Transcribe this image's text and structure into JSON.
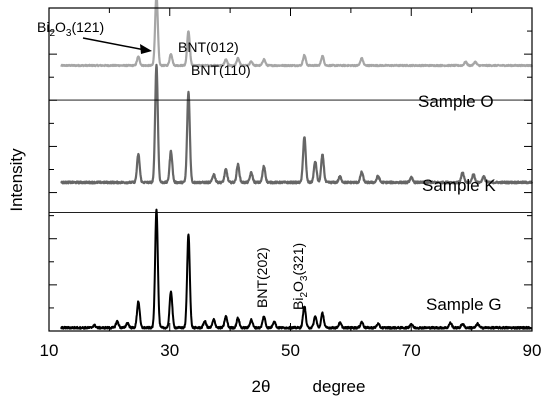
{
  "chart_data": {
    "type": "line",
    "xlabel_main": "2θ",
    "xlabel_unit": "degree",
    "ylabel": "Intensity",
    "xlim": [
      10,
      90
    ],
    "x_ticks": [
      10,
      30,
      50,
      70,
      90
    ],
    "x_tick_labels": [
      "10",
      "30",
      "50",
      "70",
      "90"
    ],
    "x_minor_step": 10,
    "y_ticks_visible": true,
    "y_tick_labels_visible": false,
    "x_start": 12,
    "x_end": 90,
    "series": [
      {
        "name": "Sample O",
        "color": "#a6a6a6",
        "baseline": 0.822,
        "noise": 0.002,
        "peaks": [
          {
            "x": 24.8,
            "h": 0.027
          },
          {
            "x": 27.8,
            "h": 0.219
          },
          {
            "x": 30.2,
            "h": 0.036
          },
          {
            "x": 33.1,
            "h": 0.106
          },
          {
            "x": 39.3,
            "h": 0.018
          },
          {
            "x": 41.3,
            "h": 0.022
          },
          {
            "x": 43.5,
            "h": 0.012
          },
          {
            "x": 45.6,
            "h": 0.019
          },
          {
            "x": 52.3,
            "h": 0.032
          },
          {
            "x": 55.3,
            "h": 0.029
          },
          {
            "x": 61.8,
            "h": 0.022
          },
          {
            "x": 79.0,
            "h": 0.011
          },
          {
            "x": 80.6,
            "h": 0.011
          }
        ]
      },
      {
        "name": "Sample K",
        "color": "#666666",
        "baseline": 0.46,
        "noise": 0.003,
        "peaks": [
          {
            "x": 24.8,
            "h": 0.087
          },
          {
            "x": 27.8,
            "h": 0.364
          },
          {
            "x": 30.2,
            "h": 0.097
          },
          {
            "x": 33.1,
            "h": 0.28
          },
          {
            "x": 37.3,
            "h": 0.025
          },
          {
            "x": 39.3,
            "h": 0.04
          },
          {
            "x": 41.3,
            "h": 0.055
          },
          {
            "x": 43.5,
            "h": 0.03
          },
          {
            "x": 45.6,
            "h": 0.05
          },
          {
            "x": 52.3,
            "h": 0.141
          },
          {
            "x": 54.1,
            "h": 0.065
          },
          {
            "x": 55.3,
            "h": 0.085
          },
          {
            "x": 58.2,
            "h": 0.018
          },
          {
            "x": 61.8,
            "h": 0.032
          },
          {
            "x": 64.5,
            "h": 0.02
          },
          {
            "x": 70.0,
            "h": 0.015
          },
          {
            "x": 78.5,
            "h": 0.03
          },
          {
            "x": 80.3,
            "h": 0.025
          },
          {
            "x": 82.0,
            "h": 0.018
          }
        ]
      },
      {
        "name": "Sample G",
        "color": "#000000",
        "baseline": 0.01,
        "noise": 0.003,
        "peaks": [
          {
            "x": 17.5,
            "h": 0.008
          },
          {
            "x": 21.3,
            "h": 0.02
          },
          {
            "x": 23.0,
            "h": 0.015
          },
          {
            "x": 24.8,
            "h": 0.082
          },
          {
            "x": 27.8,
            "h": 0.368
          },
          {
            "x": 30.2,
            "h": 0.113
          },
          {
            "x": 33.1,
            "h": 0.29
          },
          {
            "x": 35.8,
            "h": 0.02
          },
          {
            "x": 37.3,
            "h": 0.025
          },
          {
            "x": 39.3,
            "h": 0.035
          },
          {
            "x": 41.3,
            "h": 0.03
          },
          {
            "x": 43.5,
            "h": 0.025
          },
          {
            "x": 45.6,
            "h": 0.035
          },
          {
            "x": 47.3,
            "h": 0.02
          },
          {
            "x": 52.3,
            "h": 0.068
          },
          {
            "x": 54.1,
            "h": 0.035
          },
          {
            "x": 55.3,
            "h": 0.045
          },
          {
            "x": 58.2,
            "h": 0.015
          },
          {
            "x": 61.8,
            "h": 0.018
          },
          {
            "x": 64.5,
            "h": 0.012
          },
          {
            "x": 70.0,
            "h": 0.012
          },
          {
            "x": 76.5,
            "h": 0.015
          },
          {
            "x": 78.5,
            "h": 0.012
          },
          {
            "x": 81.0,
            "h": 0.012
          }
        ]
      }
    ],
    "separators": [
      0.367,
      0.715
    ],
    "annotations": [
      {
        "text": "Bi",
        "sub": "2",
        "text2": "O",
        "sub2": "3",
        "text3": "(121)",
        "x": 27.8,
        "series": "Sample O",
        "arrow": true
      },
      {
        "text": "BNT(012)",
        "x": 33.1,
        "series": "Sample O"
      },
      {
        "text": "BNT(110)",
        "x": 33.1,
        "series": "Sample O"
      },
      {
        "text": "BNT(202)",
        "x": 46.0,
        "series": "Sample G",
        "rotated": true
      },
      {
        "text": "Bi",
        "sub": "2",
        "text2": "O",
        "sub2": "3",
        "text3": "(321)",
        "x": 52.3,
        "series": "Sample G",
        "rotated": true
      }
    ]
  }
}
